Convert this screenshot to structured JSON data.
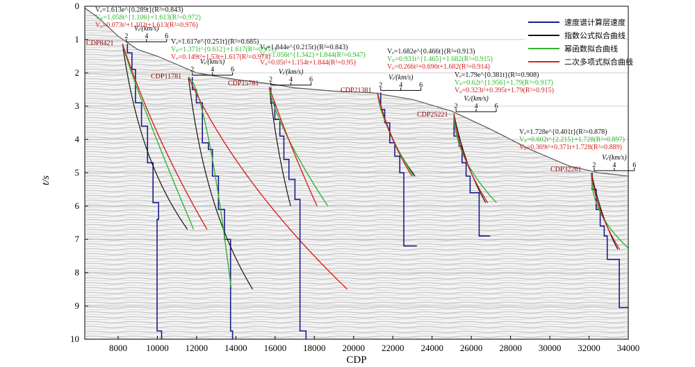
{
  "chart_data": {
    "type": "line",
    "xlabel": "CDP",
    "ylabel": "t/s",
    "xlim": [
      6300,
      34000
    ],
    "ylim": [
      0,
      10
    ],
    "y_inverted": true,
    "background": "seismic section (grayscale reflection data)",
    "x_ticks": [
      "8000",
      "10000",
      "12000",
      "14000",
      "16000",
      "18000",
      "20000",
      "22000",
      "24000",
      "26000",
      "28000",
      "30000",
      "32000",
      "34000"
    ],
    "y_ticks": [
      "0",
      "1",
      "2",
      "3",
      "4",
      "5",
      "6",
      "7",
      "8",
      "9",
      "10"
    ],
    "colors": {
      "interval": "#1a1a8c",
      "exponential": "#111111",
      "power": "#2db52d",
      "quadratic": "#d62020"
    },
    "legend": [
      {
        "key": "interval",
        "label": "速度谱计算层速度"
      },
      {
        "key": "exponential",
        "label": "指数公式拟合曲线"
      },
      {
        "key": "power",
        "label": "幂函数拟合曲线"
      },
      {
        "key": "quadratic",
        "label": "二次多项式拟合曲线"
      }
    ],
    "legend_position": "top-right",
    "velocity_scale_label": "Vᵢ/(km/s)",
    "velocity_scale_ticks": [
      "2",
      "4",
      "6"
    ],
    "velocity_plot_width_cdp": 2050,
    "gathers": [
      {
        "name": "CDP8421",
        "base_x": 8421,
        "t0": 1.13,
        "eq_exp": "Vₑ=1.613e^{0.289t}(R²=0.843)",
        "eq_pow": "Vₚ=1.058t^{1.106}+1.613(R²=0.972)",
        "eq_quad": "Vᵩ=0.073t²+1.102t+1.613(R²=0.976)",
        "exp": {
          "a": 1.613,
          "b": 0.289
        },
        "pow": {
          "a": 1.058,
          "b": 1.106,
          "c": 1.613
        },
        "quad": {
          "a": 0.073,
          "b": 1.102,
          "c": 1.613
        },
        "fit_tmax": 6.7,
        "interval_steps": [
          [
            1.13,
            2.1
          ],
          [
            1.4,
            2.55
          ],
          [
            1.9,
            2.9
          ],
          [
            2.9,
            3.5
          ],
          [
            3.6,
            4.1
          ],
          [
            4.7,
            4.65
          ],
          [
            5.9,
            5.2
          ],
          [
            6.4,
            5.05
          ],
          [
            9.75,
            5.5
          ],
          [
            10.0,
            5.5
          ]
        ]
      },
      {
        "name": "CDP11781",
        "base_x": 11781,
        "t0": 2.13,
        "eq_exp": "Vₑ=1.617e^{0.251t}(R²=0.685)",
        "eq_pow": "Vₚ=1.371t^{0.612}+1.617(R²=0.951)",
        "eq_quad": "Vᵩ=0.149t²+1.53t+1.617(R²=0.973)",
        "exp": {
          "a": 1.617,
          "b": 0.251
        },
        "pow": {
          "a": 1.371,
          "b": 0.612,
          "c": 1.617
        },
        "quad": {
          "a": 0.149,
          "b": 1.53,
          "c": 1.617
        },
        "fit_tmax": 8.5,
        "interval_steps": [
          [
            2.13,
            2.0
          ],
          [
            2.5,
            2.4
          ],
          [
            2.9,
            3.0
          ],
          [
            4.1,
            3.6
          ],
          [
            4.3,
            4.0
          ],
          [
            5.1,
            4.6
          ],
          [
            6.1,
            5.2
          ],
          [
            7.0,
            5.8
          ],
          [
            9.75,
            6.0
          ],
          [
            10.0,
            6.0
          ]
        ]
      },
      {
        "name": "CDP15781",
        "base_x": 15781,
        "t0": 2.43,
        "eq_exp": "Vₑ=1.844e^{0.215t}(R²=0.843)",
        "eq_pow": "Vₚ=1.056t^{1.342}+1.844(R²=0.947)",
        "eq_quad": "Vᵩ=0.05t²+1.154t+1.844(R²=0.95)",
        "exp": {
          "a": 1.844,
          "b": 0.215
        },
        "pow": {
          "a": 1.056,
          "b": 1.342,
          "c": 1.844
        },
        "quad": {
          "a": 0.05,
          "b": 1.154,
          "c": 1.844
        },
        "fit_tmax": 6.0,
        "interval_steps": [
          [
            2.43,
            2.0
          ],
          [
            2.9,
            2.4
          ],
          [
            3.4,
            2.9
          ],
          [
            3.9,
            3.3
          ],
          [
            4.6,
            3.8
          ],
          [
            5.2,
            4.4
          ],
          [
            5.8,
            4.9
          ],
          [
            9.75,
            5.5
          ],
          [
            10.0,
            5.5
          ]
        ]
      },
      {
        "name": "CDP21381",
        "base_x": 21381,
        "t0": 2.59,
        "eq_exp": "Vₑ=1.682e^{0.466t}(R²=0.913)",
        "eq_pow": "Vₚ=0.931t^{1.465}+1.682(R²=0.915)",
        "eq_quad": "Vᵩ=0.266t²+0.696t+1.682(R²=0.914)",
        "exp": {
          "a": 1.682,
          "b": 0.466
        },
        "pow": {
          "a": 0.931,
          "b": 1.465,
          "c": 1.682
        },
        "quad": {
          "a": 0.266,
          "b": 0.696,
          "c": 1.682
        },
        "fit_tmax": 5.1,
        "interval_steps": [
          [
            2.59,
            2.0
          ],
          [
            3.1,
            2.4
          ],
          [
            3.5,
            2.9
          ],
          [
            4.1,
            3.4
          ],
          [
            4.5,
            3.9
          ],
          [
            5.0,
            4.3
          ],
          [
            7.2,
            5.6
          ]
        ]
      },
      {
        "name": "CDP25221",
        "base_x": 25221,
        "t0": 3.23,
        "eq_exp": "Vₑ=1.79e^{0.381t}(R²=0.908)",
        "eq_pow": "Vₚ=0.62t^{1.956}+1.79(R²=0.917)",
        "eq_quad": "Vᵩ=0.323t²+0.395t+1.79(R²=0.915)",
        "exp": {
          "a": 1.79,
          "b": 0.381
        },
        "pow": {
          "a": 0.62,
          "b": 1.956,
          "c": 1.79
        },
        "quad": {
          "a": 0.323,
          "b": 0.395,
          "c": 1.79
        },
        "fit_tmax": 5.9,
        "interval_steps": [
          [
            3.23,
            1.8
          ],
          [
            3.9,
            2.3
          ],
          [
            4.2,
            2.6
          ],
          [
            4.7,
            3.0
          ],
          [
            5.1,
            3.4
          ],
          [
            5.6,
            4.3
          ],
          [
            6.9,
            5.4
          ]
        ]
      },
      {
        "name": "CDP32261",
        "base_x": 32261,
        "t0": 5.0,
        "eq_exp": "Vₑ=1.728e^{0.401t}(R²=0.878)",
        "eq_pow": "Vₚ=0.602t^{2.215}+1.728(R²=0.897)",
        "eq_quad": "Vᵩ=0.369t²+0.371t+1.728(R²=0.889)",
        "exp": {
          "a": 1.728,
          "b": 0.401
        },
        "pow": {
          "a": 0.602,
          "b": 2.215,
          "c": 1.728
        },
        "quad": {
          "a": 0.369,
          "b": 0.371,
          "c": 1.728
        },
        "fit_tmax": 7.3,
        "interval_steps": [
          [
            5.0,
            1.8
          ],
          [
            5.5,
            2.2
          ],
          [
            6.1,
            2.6
          ],
          [
            6.6,
            3.0
          ],
          [
            6.9,
            3.3
          ],
          [
            7.6,
            4.5
          ],
          [
            9.05,
            5.9
          ]
        ]
      }
    ]
  }
}
